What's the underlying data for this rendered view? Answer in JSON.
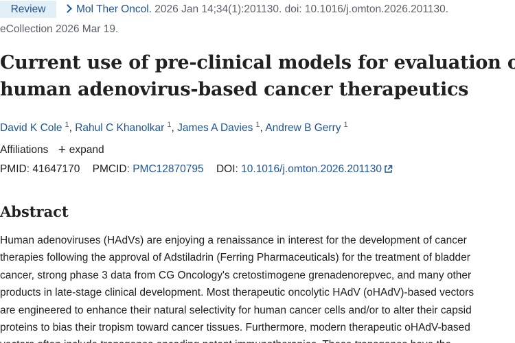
{
  "citation": {
    "badge": "Review",
    "journal": "Mol Ther Oncol.",
    "details": " 2026 Jan 14;34(1):201130. doi: 10.1016/j.omton.2026.201130.",
    "ecollection": "eCollection 2026 Mar 19."
  },
  "title_lines": [
    "Current use of pre-clinical models for evaluation of",
    "human adenovirus-based cancer therapeutics"
  ],
  "authors": [
    {
      "name": "David K Cole",
      "sup": "1"
    },
    {
      "name": "Rahul C Khanolkar",
      "sup": "1"
    },
    {
      "name": "James A Davies",
      "sup": "1"
    },
    {
      "name": "Andrew B Gerry",
      "sup": "1"
    }
  ],
  "affiliations": {
    "label": "Affiliations",
    "expand_label": "expand"
  },
  "identifiers": {
    "pmid_label": "PMID:",
    "pmid": "41647170",
    "pmcid_label": "PMCID:",
    "pmcid": "PMC12870795",
    "doi_label": "DOI:",
    "doi": "10.1016/j.omton.2026.201130"
  },
  "abstract": {
    "heading": "Abstract",
    "lines": [
      "Human adenoviruses (HAdVs) are enjoying a renaissance in interest for the development of cancer",
      "therapies following the approval of Adstiladrin (Ferring Pharmaceuticals) for the treatment of bladder",
      "cancer, strong phase 3 data from CG Oncology's cretostimogene grenadenorepvec, and many other",
      "products in late-stage clinical development. Most therapeutic oncolytic HAdV (oHAdV)-based vectors",
      "are engineered to enhance their natural selectivity for human cancer cells and/or to alter their capsid",
      "proteins to bias their tropism toward cancer tissues. Furthermore, modern therapeutic oHAdV-based",
      "vectors often include transgenes encoding potent immunotherapies. These transgenes have the"
    ]
  },
  "colors": {
    "link": "#205493",
    "badge_bg": "#e1eff7",
    "muted": "#5b616b",
    "text": "#212121"
  }
}
